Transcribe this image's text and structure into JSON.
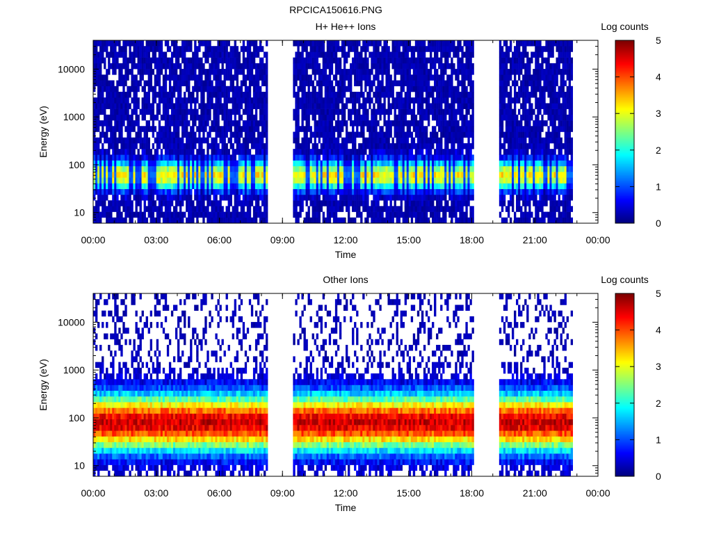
{
  "figure": {
    "title": "RPCICA150616.PNG"
  },
  "chart_data": [
    {
      "type": "heatmap",
      "title": "H+ He++ Ions",
      "xlabel": "Time",
      "ylabel": "Energy (eV)",
      "x_ticks": [
        "00:00",
        "03:00",
        "06:00",
        "09:00",
        "12:00",
        "15:00",
        "18:00",
        "21:00",
        "00:00"
      ],
      "x_range_hours": [
        0,
        24
      ],
      "y_scale": "log",
      "y_range": [
        6,
        40000
      ],
      "y_ticks": [
        {
          "value": 10,
          "label": "10"
        },
        {
          "value": 100,
          "label": "100"
        },
        {
          "value": 1000,
          "label": "1000"
        },
        {
          "value": 10000,
          "label": "10000"
        }
      ],
      "colorbar": {
        "label": "Log counts",
        "range": [
          0,
          5
        ],
        "ticks": [
          "0",
          "1",
          "2",
          "3",
          "4",
          "5"
        ],
        "colormap": "jet"
      },
      "data_gaps_hours": [
        [
          8.2,
          9.4
        ],
        [
          18.0,
          19.3
        ],
        [
          22.8,
          24
        ]
      ],
      "peak_energy_eV": 60,
      "peak_log_counts_approx": 3.2
    },
    {
      "type": "heatmap",
      "title": "Other Ions",
      "xlabel": "Time",
      "ylabel": "Energy (eV)",
      "x_ticks": [
        "00:00",
        "03:00",
        "06:00",
        "09:00",
        "12:00",
        "15:00",
        "18:00",
        "21:00",
        "00:00"
      ],
      "x_range_hours": [
        0,
        24
      ],
      "y_scale": "log",
      "y_range": [
        6,
        40000
      ],
      "y_ticks": [
        {
          "value": 10,
          "label": "10"
        },
        {
          "value": 100,
          "label": "100"
        },
        {
          "value": 1000,
          "label": "1000"
        },
        {
          "value": 10000,
          "label": "10000"
        }
      ],
      "colorbar": {
        "label": "Log counts",
        "range": [
          0,
          5
        ],
        "ticks": [
          "0",
          "1",
          "2",
          "3",
          "4",
          "5"
        ],
        "colormap": "jet"
      },
      "data_gaps_hours": [
        [
          8.2,
          9.4
        ],
        [
          18.0,
          19.3
        ],
        [
          22.8,
          24
        ]
      ],
      "peak_energy_eV": 80,
      "peak_log_counts_approx": 4.6
    }
  ]
}
